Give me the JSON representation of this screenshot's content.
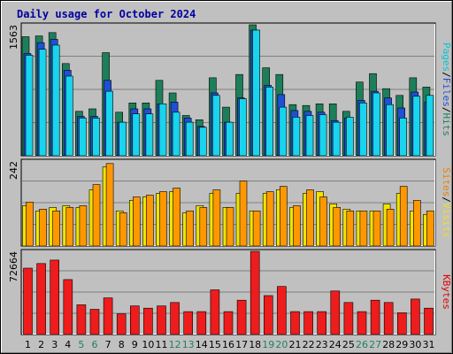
{
  "chart_data": {
    "type": "bar",
    "title": "Daily usage for October 2024",
    "categories": [
      "1",
      "2",
      "3",
      "4",
      "5",
      "6",
      "7",
      "8",
      "9",
      "10",
      "11",
      "12",
      "13",
      "14",
      "15",
      "16",
      "17",
      "18",
      "19",
      "20",
      "21",
      "22",
      "23",
      "24",
      "25",
      "26",
      "27",
      "28",
      "29",
      "30",
      "31"
    ],
    "weekend_days": [
      "5",
      "6",
      "12",
      "13",
      "19",
      "20",
      "26",
      "27"
    ],
    "panels": [
      {
        "name": "pages-files-hits",
        "ymax_label": "1563",
        "ylim": [
          0,
          1563
        ],
        "axis_title": [
          {
            "text": "Pages",
            "color": "#00c8d8"
          },
          {
            "text": "/",
            "color": "#000000"
          },
          {
            "text": "Files",
            "color": "#2050e0"
          },
          {
            "text": "/",
            "color": "#000000"
          },
          {
            "text": "Hits",
            "color": "#208060"
          }
        ],
        "series": [
          {
            "name": "Hits",
            "color": "#1d7f5a",
            "values": [
              1420,
              1430,
              1470,
              1100,
              530,
              560,
              1230,
              520,
              630,
              630,
              900,
              750,
              480,
              430,
              930,
              580,
              970,
              1563,
              1050,
              970,
              610,
              600,
              620,
              620,
              530,
              880,
              980,
              800,
              720,
              930,
              820
            ]
          },
          {
            "name": "Files",
            "color": "#1f4fd6",
            "values": [
              1220,
              1350,
              1390,
              1020,
              470,
              470,
              900,
              400,
              560,
              560,
              620,
              640,
              450,
              350,
              750,
              400,
              690,
              1500,
              840,
              730,
              540,
              530,
              520,
              420,
              450,
              660,
              770,
              690,
              570,
              760,
              640
            ]
          },
          {
            "name": "Pages",
            "color": "#18d4ec",
            "values": [
              1200,
              1270,
              1320,
              950,
              450,
              450,
              770,
              400,
              500,
              500,
              620,
              520,
              400,
              340,
              720,
              400,
              680,
              1500,
              820,
              580,
              460,
              480,
              490,
              400,
              460,
              630,
              750,
              610,
              450,
              710,
              720
            ]
          }
        ]
      },
      {
        "name": "visits-sites",
        "ymax_label": "242",
        "ylim": [
          0,
          242
        ],
        "axis_title": [
          {
            "text": "Sites",
            "color": "#f08000"
          },
          {
            "text": "/",
            "color": "#000000"
          },
          {
            "text": "Visits",
            "color": "#f0e020"
          }
        ],
        "series": [
          {
            "name": "Visits",
            "color": "#f0e400",
            "values": [
              115,
              100,
              110,
              115,
              110,
              160,
              225,
              100,
              130,
              140,
              150,
              155,
              95,
              115,
              150,
              110,
              150,
              100,
              150,
              160,
              110,
              150,
              155,
              120,
              105,
              100,
              100,
              120,
              150,
              100,
              90
            ]
          },
          {
            "name": "Sites",
            "color": "#ff9800",
            "values": [
              125,
              105,
              100,
              110,
              115,
              175,
              235,
              95,
              140,
              145,
              155,
              165,
              100,
              110,
              160,
              110,
              185,
              100,
              155,
              170,
              115,
              160,
              140,
              110,
              100,
              100,
              100,
              105,
              170,
              130,
              100
            ]
          }
        ]
      },
      {
        "name": "kbytes",
        "ymax_label": "72664",
        "ylim": [
          0,
          72664
        ],
        "axis_title": [
          {
            "text": "KBytes",
            "color": "#e00000"
          }
        ],
        "series": [
          {
            "name": "KBytes",
            "color": "#ee1c1c",
            "values": [
              58000,
              62000,
              65000,
              48000,
              26000,
              22000,
              32000,
              18000,
              25000,
              23000,
              25000,
              28000,
              20000,
              20000,
              39000,
              20000,
              30000,
              72664,
              34000,
              42000,
              20000,
              20000,
              20000,
              38000,
              28000,
              20000,
              30000,
              28000,
              19000,
              31000,
              23000
            ]
          }
        ]
      }
    ],
    "colors": {
      "frame": "#c0c0c0",
      "plot_bg": "#c0c0c0",
      "gridline": "#808080",
      "day_weekday": "#000000",
      "day_weekend": "#208060"
    }
  }
}
